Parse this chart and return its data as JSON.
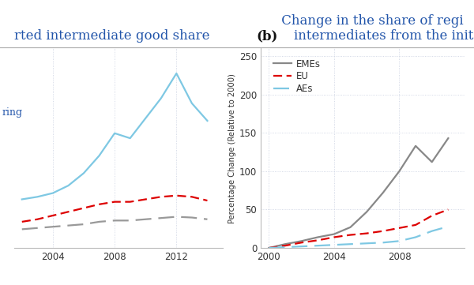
{
  "left_panel": {
    "years_left": [
      2002,
      2003,
      2004,
      2005,
      2006,
      2007,
      2008,
      2009,
      2010,
      2011,
      2012,
      2013,
      2014
    ],
    "blue_line": [
      0.195,
      0.205,
      0.22,
      0.25,
      0.3,
      0.37,
      0.46,
      0.44,
      0.52,
      0.6,
      0.7,
      0.58,
      0.51
    ],
    "red_dashed": [
      0.105,
      0.115,
      0.13,
      0.145,
      0.16,
      0.175,
      0.185,
      0.185,
      0.195,
      0.205,
      0.21,
      0.205,
      0.19
    ],
    "gray_dashed": [
      0.075,
      0.08,
      0.085,
      0.09,
      0.095,
      0.105,
      0.11,
      0.11,
      0.115,
      0.12,
      0.125,
      0.122,
      0.115
    ],
    "blue_color": "#7ec8e3",
    "red_color": "#dd0000",
    "gray_color": "#999999",
    "xlim": [
      2001.5,
      2015.0
    ],
    "ylim": [
      0.0,
      0.8
    ],
    "xticks": [
      2004,
      2008,
      2012
    ],
    "title": "rted intermediate good share",
    "ylabel_text": "ring"
  },
  "right_panel": {
    "years_right": [
      2000,
      2001,
      2002,
      2003,
      2004,
      2005,
      2006,
      2007,
      2008,
      2009,
      2010,
      2011
    ],
    "eu_dashed": [
      0,
      3,
      7,
      10,
      14,
      17,
      19,
      22,
      26,
      30,
      42,
      50
    ],
    "aes_dashed": [
      0,
      1,
      2,
      3,
      4,
      5,
      6,
      7,
      9,
      14,
      22,
      28
    ],
    "emes_solid": [
      0,
      5,
      9,
      14,
      18,
      27,
      47,
      72,
      100,
      133,
      112,
      143
    ],
    "eu_color": "#dd0000",
    "aes_color": "#7ec8e3",
    "emes_color": "#888888",
    "xlim": [
      1999.5,
      2012.0
    ],
    "ylim": [
      0,
      260
    ],
    "xticks": [
      2000,
      2004,
      2008
    ],
    "yticks": [
      0,
      50,
      100,
      150,
      200,
      250
    ],
    "ylabel": "Percentage Change (Relative to 2000)",
    "legend_labels": [
      "EU",
      "AEs",
      "EMEs"
    ],
    "title_bold": "(b)",
    "title_normal": " Change in the share of regi\n    intermediates from the init"
  },
  "background_color": "#ffffff",
  "grid_color": "#c8cfe0",
  "title_color": "#2255aa",
  "title_fontsize": 12,
  "axis_label_color": "#333333"
}
